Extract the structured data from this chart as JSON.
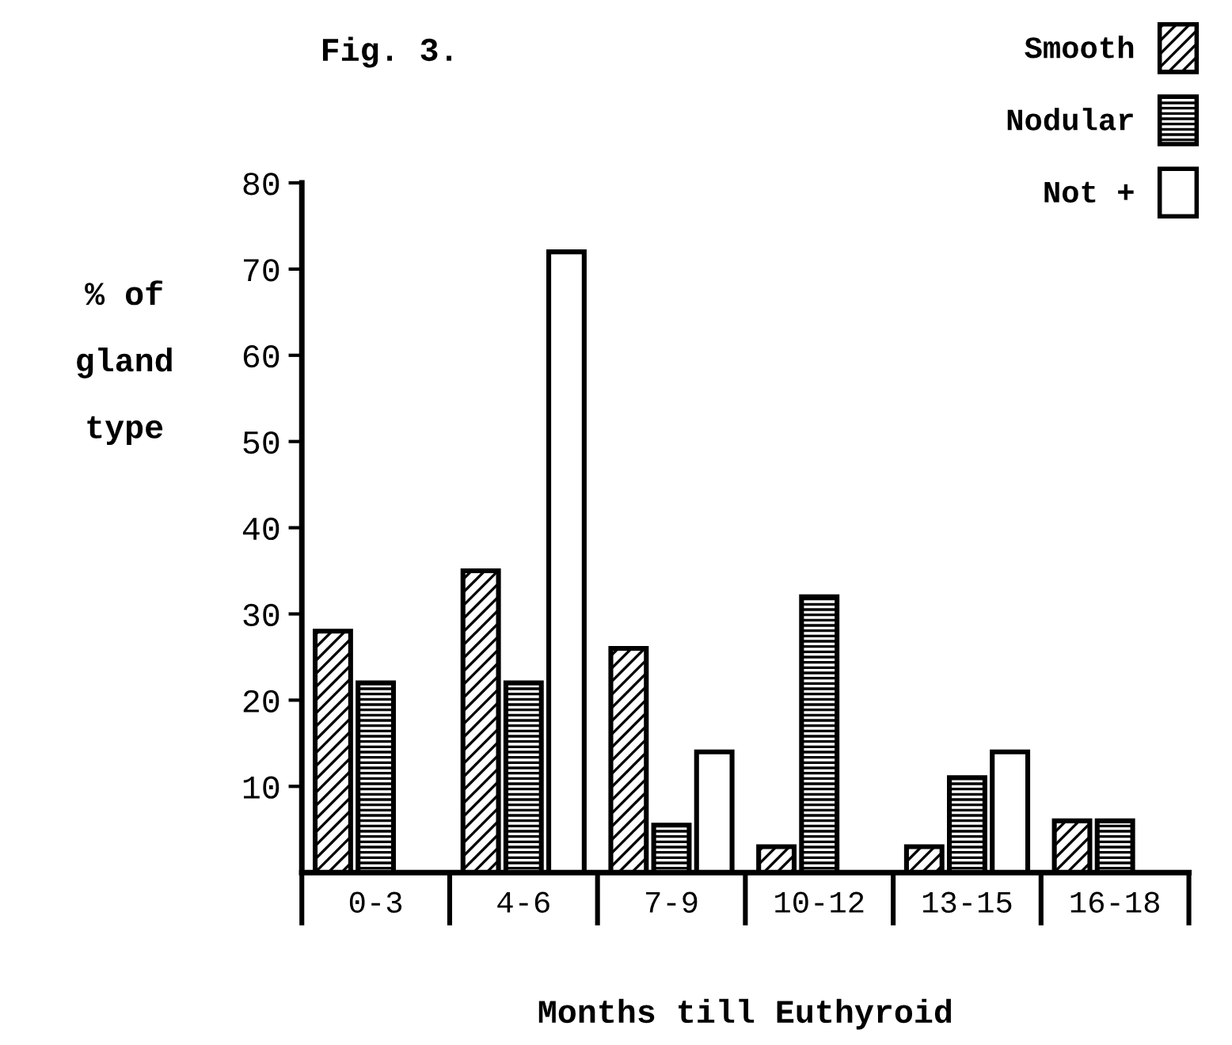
{
  "chart_data": {
    "type": "bar",
    "title": "Fig. 3.",
    "xlabel": "Months till Euthyroid",
    "ylabel": "% of gland type",
    "categories": [
      "0-3",
      "4-6",
      "7-9",
      "10-12",
      "13-15",
      "16-18"
    ],
    "series": [
      {
        "name": "Smooth",
        "color": "#000000",
        "values": [
          28,
          35,
          26,
          3,
          3,
          6
        ]
      },
      {
        "name": "Nodular",
        "color": "#000000",
        "values": [
          22,
          22,
          5.5,
          32,
          11,
          6
        ]
      },
      {
        "name": "Not +",
        "color": "#ffffff",
        "values": [
          null,
          72,
          14,
          null,
          14,
          null
        ]
      }
    ],
    "ylim": [
      0,
      80
    ],
    "yticks": [
      10,
      20,
      30,
      40,
      50,
      60,
      70,
      80
    ],
    "grid": false,
    "legend": "top right"
  }
}
